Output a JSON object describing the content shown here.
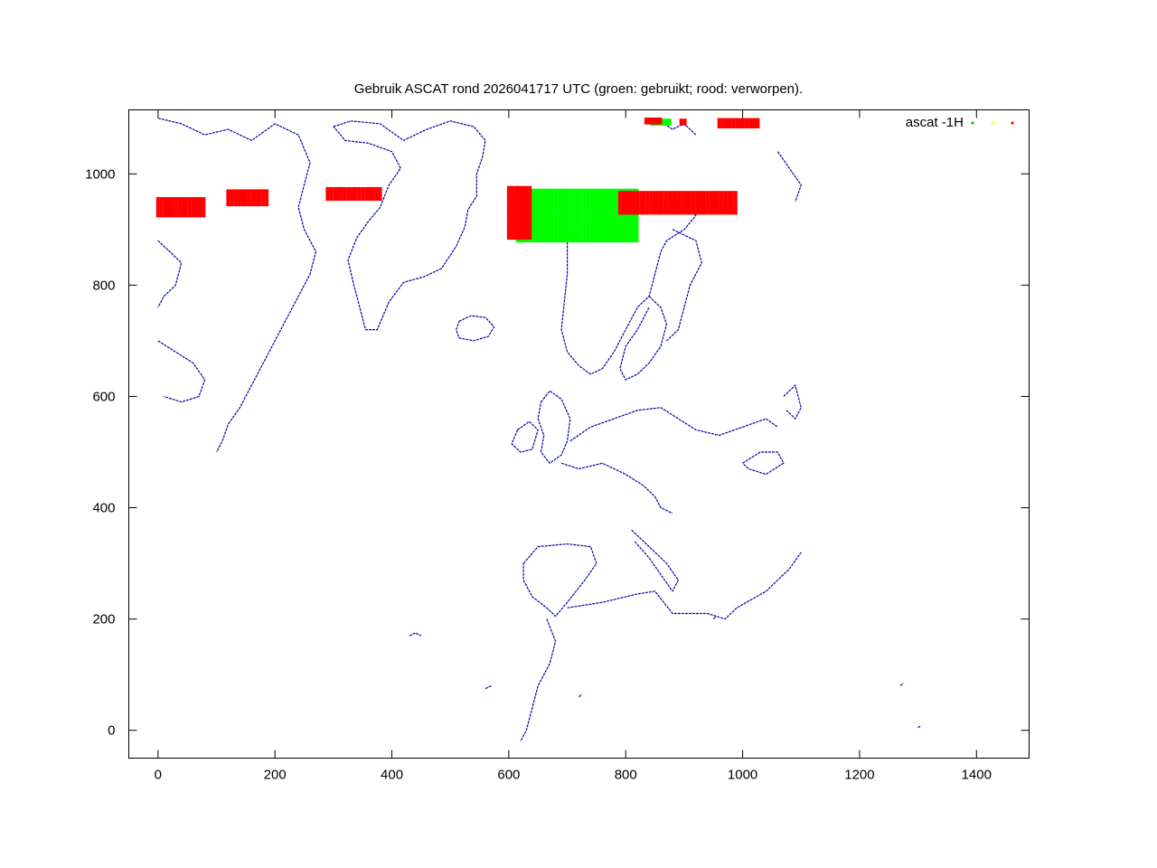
{
  "chart_data": {
    "type": "scatter",
    "title": "Gebruik ASCAT rond 2026041717 UTC (groen: gebruikt; rood: verworpen).",
    "xlabel": "",
    "ylabel": "",
    "xlim": [
      -50,
      1490
    ],
    "ylim": [
      -50,
      1115
    ],
    "x_ticks": [
      0,
      200,
      400,
      600,
      800,
      1000,
      1200,
      1400
    ],
    "y_ticks": [
      0,
      200,
      400,
      600,
      800,
      1000
    ],
    "x_tick_labels": [
      "0",
      "200",
      "400",
      "600",
      "800",
      "1000",
      "1200",
      "1400"
    ],
    "y_tick_labels": [
      "0",
      "200",
      "400",
      "600",
      "800",
      "1000"
    ],
    "grid": false,
    "legend": {
      "placement": "top-right",
      "label": "ascat -1H",
      "markers": [
        "#00cc00",
        "#ffff00",
        "#ff0000"
      ]
    },
    "background_layer": {
      "description_key": "coastlines",
      "color": "#0000aa"
    },
    "series": [
      {
        "status": "used",
        "color": "#00ff00",
        "regions": [
          {
            "x": [
              615,
              820
            ],
            "y": [
              880,
              975
            ]
          },
          {
            "x": [
              845,
              880
            ],
            "y": [
              1090,
              1098
            ]
          }
        ]
      },
      {
        "status": "rejected",
        "color": "#ff0000",
        "regions": [
          {
            "x": [
              0,
              80
            ],
            "y": [
              925,
              960
            ]
          },
          {
            "x": [
              120,
              190
            ],
            "y": [
              945,
              970
            ]
          },
          {
            "x": [
              290,
              380
            ],
            "y": [
              955,
              975
            ]
          },
          {
            "x": [
              600,
              640
            ],
            "y": [
              885,
              975
            ]
          },
          {
            "x": [
              790,
              990
            ],
            "y": [
              930,
              970
            ]
          },
          {
            "x": [
              835,
              860
            ],
            "y": [
              1092,
              1098
            ]
          },
          {
            "x": [
              895,
              905
            ],
            "y": [
              1090,
              1098
            ]
          },
          {
            "x": [
              960,
              1030
            ],
            "y": [
              1085,
              1100
            ]
          }
        ]
      }
    ]
  }
}
